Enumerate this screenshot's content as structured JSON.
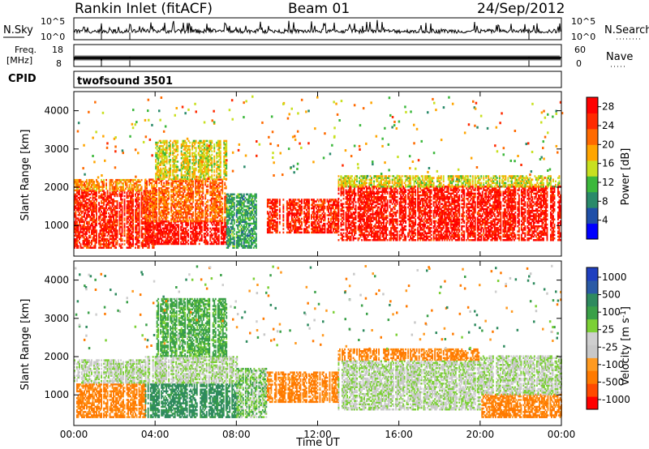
{
  "header": {
    "station": "Rankin Inlet (fitACF)",
    "beam": "Beam 01",
    "date": "24/Sep/2012"
  },
  "meta_panels": {
    "nsky_label": "N.Sky",
    "nsky_ticks": [
      "10^5",
      "10^0"
    ],
    "nsearch_label": "N.Search",
    "nsearch_ticks": [
      "10^5",
      "10^0"
    ],
    "freq_label": "Freq.",
    "freq_unit": "[MHz]",
    "freq_ticks": [
      "18",
      "8"
    ],
    "nave_label": "Nave",
    "nave_ticks": [
      "60",
      "0"
    ],
    "cpid_label": "CPID",
    "cpid_value": "twofsound 3501"
  },
  "colors": {
    "power_scale": [
      "#0000ff",
      "#1f4fa8",
      "#2a8a6a",
      "#3cb83c",
      "#c8e020",
      "#ffa500",
      "#ff6a00",
      "#ff2a00",
      "#ff0000"
    ],
    "velocity_scale": [
      "#1f3fbf",
      "#2a5aa5",
      "#2e8a5e",
      "#3aa048",
      "#7cd036",
      "#cfcfcf",
      "#c8c8c8",
      "#ff9a20",
      "#ff7a00",
      "#ff4a00",
      "#ff0000"
    ]
  },
  "chart_data": [
    {
      "type": "heatmap",
      "name": "Power",
      "xlabel": "",
      "ylabel": "Slant Range [km]",
      "xlim": [
        "00:00",
        "24:00"
      ],
      "ylim": [
        200,
        4500
      ],
      "yticks": [
        "1000",
        "2000",
        "3000",
        "4000"
      ],
      "colorbar_label": "Power [dB]",
      "colorbar_ticks": [
        "4",
        "8",
        "12",
        "16",
        "20",
        "24",
        "28"
      ],
      "colorbar_range": [
        0,
        30
      ],
      "regions": [
        {
          "t0": 0.0,
          "t1": 4.0,
          "r0": 400,
          "r1": 1900,
          "value": 26
        },
        {
          "t0": 0.0,
          "t1": 3.5,
          "r0": 1900,
          "r1": 2200,
          "value": 20
        },
        {
          "t0": 3.5,
          "t1": 7.5,
          "r0": 500,
          "r1": 1100,
          "value": 28
        },
        {
          "t0": 3.5,
          "t1": 7.5,
          "r0": 1100,
          "r1": 2200,
          "value": 22
        },
        {
          "t0": 4.0,
          "t1": 7.5,
          "r0": 2200,
          "r1": 3200,
          "value": 16
        },
        {
          "t0": 7.5,
          "t1": 9.0,
          "r0": 400,
          "r1": 1800,
          "value": 10
        },
        {
          "t0": 9.5,
          "t1": 13.0,
          "r0": 800,
          "r1": 1700,
          "value": 26
        },
        {
          "t0": 13.0,
          "t1": 24.0,
          "r0": 600,
          "r1": 2000,
          "value": 27
        },
        {
          "t0": 13.0,
          "t1": 24.0,
          "r0": 2000,
          "r1": 2300,
          "value": 16
        }
      ]
    },
    {
      "type": "heatmap",
      "name": "Velocity",
      "xlabel": "Time UT",
      "ylabel": "Slant Range [km]",
      "xlim": [
        "00:00",
        "24:00"
      ],
      "xticks": [
        "00:00",
        "04:00",
        "08:00",
        "12:00",
        "16:00",
        "20:00",
        "00:00"
      ],
      "ylim": [
        200,
        4500
      ],
      "yticks": [
        "1000",
        "2000",
        "3000",
        "4000"
      ],
      "colorbar_label": "Velocity [m s^-1]",
      "colorbar_ticks": [
        "1000",
        "500",
        "100",
        "25",
        "-25",
        "-100",
        "-500",
        "-1000"
      ],
      "regions": [
        {
          "t0": 0.0,
          "t1": 3.5,
          "r0": 400,
          "r1": 1300,
          "value": -300
        },
        {
          "t0": 0.0,
          "t1": 3.5,
          "r0": 1300,
          "r1": 1900,
          "value": 0
        },
        {
          "t0": 3.5,
          "t1": 8.0,
          "r0": 400,
          "r1": 1300,
          "value": 300
        },
        {
          "t0": 3.5,
          "t1": 8.0,
          "r0": 1300,
          "r1": 2000,
          "value": 0
        },
        {
          "t0": 4.0,
          "t1": 7.5,
          "r0": 2000,
          "r1": 3500,
          "value": 150
        },
        {
          "t0": 8.0,
          "t1": 9.5,
          "r0": 400,
          "r1": 1700,
          "value": 60
        },
        {
          "t0": 9.5,
          "t1": 13.0,
          "r0": 800,
          "r1": 1600,
          "value": -300
        },
        {
          "t0": 13.0,
          "t1": 20.0,
          "r0": 600,
          "r1": 1900,
          "value": 0
        },
        {
          "t0": 13.0,
          "t1": 20.0,
          "r0": 1900,
          "r1": 2200,
          "value": -300
        },
        {
          "t0": 20.0,
          "t1": 24.0,
          "r0": 400,
          "r1": 1000,
          "value": -300
        },
        {
          "t0": 20.0,
          "t1": 24.0,
          "r0": 1000,
          "r1": 2000,
          "value": 0
        }
      ]
    }
  ]
}
